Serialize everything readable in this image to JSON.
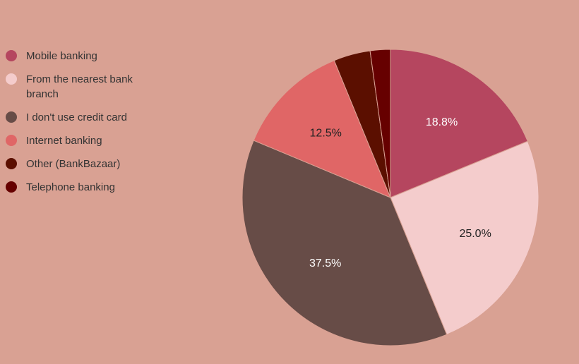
{
  "chart_data": {
    "type": "pie",
    "slices": [
      {
        "label": "Mobile banking",
        "value": 18.8,
        "display": "18.8%",
        "color": "#b5465f",
        "text_color": "#ffffff"
      },
      {
        "label": "From the nearest bank branch",
        "value": 25.0,
        "display": "25.0%",
        "color": "#f4cccc",
        "text_color": "#222222"
      },
      {
        "label": "I don't use credit card",
        "value": 37.5,
        "display": "37.5%",
        "color": "#674c47",
        "text_color": "#ffffff"
      },
      {
        "label": "Internet banking",
        "value": 12.5,
        "display": "12.5%",
        "color": "#e06666",
        "text_color": "#222222"
      },
      {
        "label": "Other (BankBazaar)",
        "value": 4.0,
        "display": "",
        "color": "#5b0f00",
        "text_color": "#ffffff"
      },
      {
        "label": "Telephone banking",
        "value": 2.2,
        "display": "",
        "color": "#660000",
        "text_color": "#ffffff"
      }
    ],
    "legend_position": "left",
    "start_angle": "top",
    "direction": "clockwise"
  },
  "colors": {
    "background": "#d9a193",
    "slice_border": "#d9a193"
  }
}
